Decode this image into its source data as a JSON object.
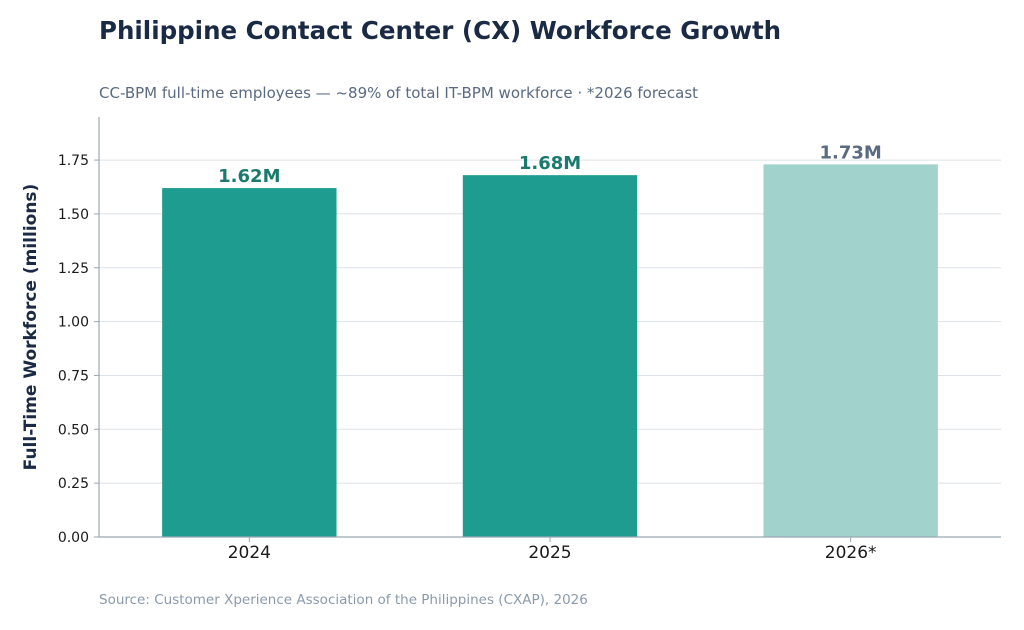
{
  "header": {
    "title": "Philippine Contact Center (CX) Workforce Growth",
    "subtitle": "CC-BPM full-time employees — ~89% of total IT-BPM workforce · *2026 forecast"
  },
  "footer": {
    "source": "Source: Customer Xperience Association of the Philippines (CXAP), 2026"
  },
  "chart_data": {
    "type": "bar",
    "title": "Philippine Contact Center (CX) Workforce Growth",
    "subtitle": "CC-BPM full-time employees — ~89% of total IT-BPM workforce · *2026 forecast",
    "xlabel": "",
    "ylabel": "Full-Time Workforce (millions)",
    "categories": [
      "2024",
      "2025",
      "2026*"
    ],
    "values": [
      1.62,
      1.68,
      1.73
    ],
    "data_labels": [
      "1.62M",
      "1.68M",
      "1.73M"
    ],
    "forecast": [
      false,
      false,
      true
    ],
    "ylim": [
      0,
      1.95
    ],
    "yticks": [
      0,
      0.25,
      0.5,
      0.75,
      1.0,
      1.25,
      1.5,
      1.75
    ],
    "ytick_labels": [
      "0.00",
      "0.25",
      "0.50",
      "0.75",
      "1.00",
      "1.25",
      "1.50",
      "1.75"
    ],
    "grid": true,
    "legend": "none",
    "colors": {
      "actual_bar": "#1d9c8f",
      "forecast_bar": "#a1d3cc",
      "actual_label": "#1a7a6e",
      "forecast_label": "#5a6a80",
      "grid": "#dde2e8",
      "axis": "#9aa6b4"
    }
  }
}
